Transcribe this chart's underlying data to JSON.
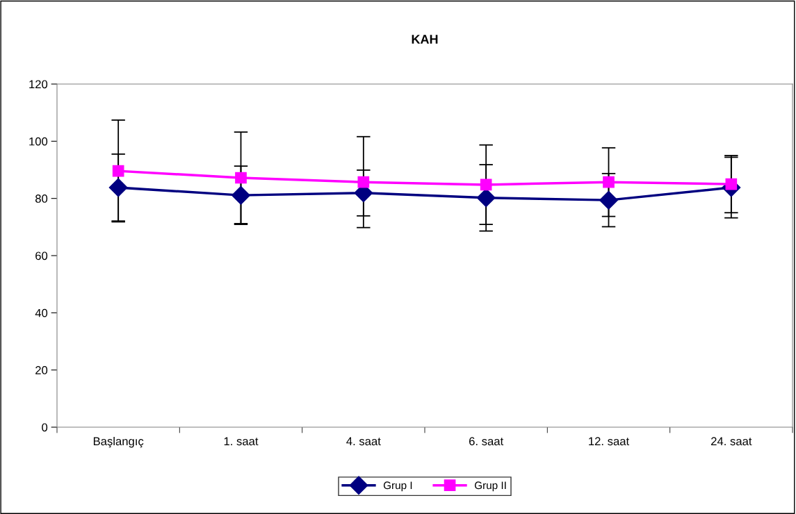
{
  "chart_data": {
    "type": "line",
    "title": "KAH",
    "categories": [
      "Başlangıç",
      "1. saat",
      "4. saat",
      "6. saat",
      "12. saat",
      "24. saat"
    ],
    "series": [
      {
        "name": "Grup I",
        "color": "#000080",
        "marker": "diamond",
        "values": [
          83.8,
          81.1,
          81.9,
          80.2,
          79.4,
          83.8
        ],
        "errors": [
          11.7,
          10.2,
          8.0,
          11.6,
          9.3,
          10.6
        ]
      },
      {
        "name": "Grup II",
        "color": "#ff00ff",
        "marker": "square",
        "values": [
          89.6,
          87.2,
          85.7,
          84.8,
          85.7,
          85.0
        ],
        "errors": [
          17.8,
          16.0,
          15.9,
          13.9,
          12.0,
          10.0
        ]
      }
    ],
    "ylim": [
      0,
      120
    ],
    "yticks": [
      0,
      20,
      40,
      60,
      80,
      100,
      120
    ],
    "grid": false,
    "legend": "bottom",
    "line_style": "solid"
  }
}
